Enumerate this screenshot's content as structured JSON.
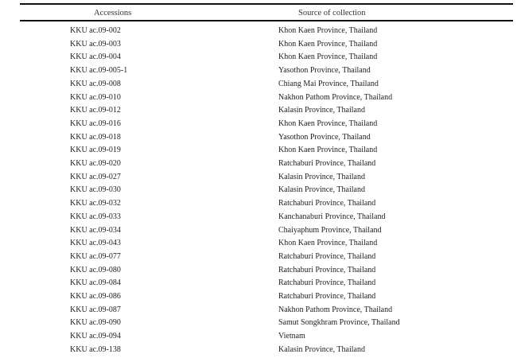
{
  "table": {
    "headers": [
      "Accessions",
      "Source of collection"
    ],
    "rows": [
      [
        "KKU ac.09-002",
        "Khon Kaen Province, Thailand"
      ],
      [
        "KKU ac.09-003",
        "Khon Kaen Province, Thailand"
      ],
      [
        "KKU ac.09-004",
        "Khon Kaen Province, Thailand"
      ],
      [
        "KKU ac.09-005-1",
        "Yasothon Province, Thailand"
      ],
      [
        "KKU ac.09-008",
        "Chiang Mai Province, Thailand"
      ],
      [
        "KKU ac.09-010",
        "Nakhon Pathom Province, Thailand"
      ],
      [
        "KKU ac.09-012",
        "Kalasin Province, Thailand"
      ],
      [
        "KKU ac.09-016",
        "Khon Kaen Province, Thailand"
      ],
      [
        "KKU ac.09-018",
        "Yasothon Province, Thailand"
      ],
      [
        "KKU ac.09-019",
        "Khon Kaen Province, Thailand"
      ],
      [
        "KKU ac.09-020",
        "Ratchaburi Province, Thailand"
      ],
      [
        "KKU ac.09-027",
        "Kalasin Province, Thailand"
      ],
      [
        "KKU ac.09-030",
        "Kalasin Province, Thailand"
      ],
      [
        "KKU ac.09-032",
        "Ratchaburi Province, Thailand"
      ],
      [
        "KKU ac.09-033",
        "Kanchanaburi Province, Thailand"
      ],
      [
        "KKU ac.09-034",
        "Chaiyaphum Province, Thailand"
      ],
      [
        "KKU ac.09-043",
        "Khon Kaen Province, Thailand"
      ],
      [
        "KKU ac.09-077",
        "Ratchaburi Province, Thailand"
      ],
      [
        "KKU ac.09-080",
        "Ratchaburi Province, Thailand"
      ],
      [
        "KKU ac.09-084",
        "Ratchaburi Province, Thailand"
      ],
      [
        "KKU ac.09-086",
        "Ratchaburi Province, Thailand"
      ],
      [
        "KKU ac.09-087",
        "Nakhon Pathom Province, Thailand"
      ],
      [
        "KKU ac.09-090",
        "Samut Songkhram Province, Thailand"
      ],
      [
        "KKU ac.09-094",
        "Vietnam"
      ],
      [
        "KKU ac.09-138",
        "Kalasin Province, Thailand"
      ]
    ]
  }
}
